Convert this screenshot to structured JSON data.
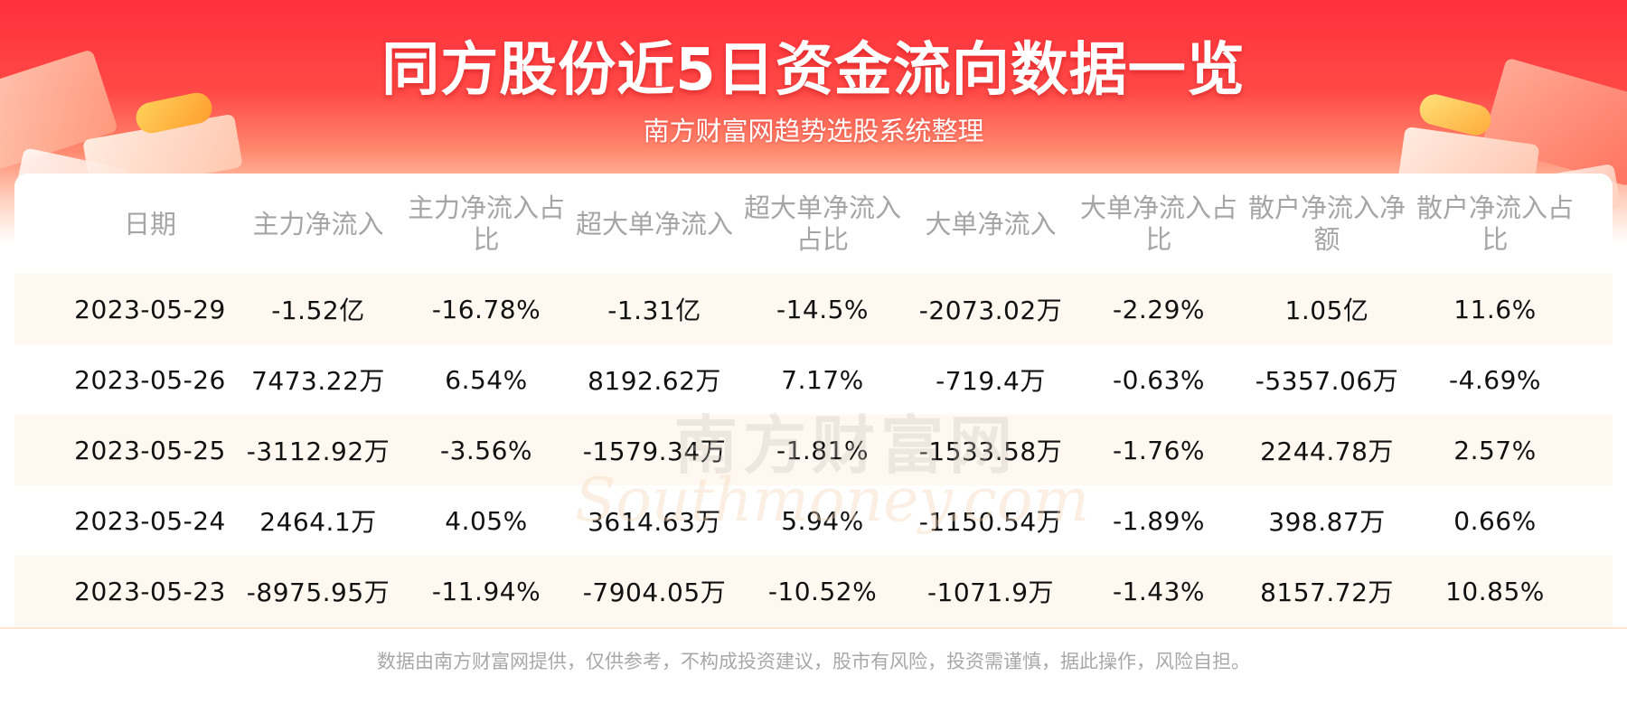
{
  "header": {
    "title": "同方股份近5日资金流向数据一览",
    "subtitle": "南方财富网趋势选股系统整理"
  },
  "watermark": {
    "cn": "南方财富网",
    "en": "Southmoney.com"
  },
  "table": {
    "columns": [
      "日期",
      "主力净流入",
      "主力净流入占比",
      "超大单净流入",
      "超大单净流入占比",
      "大单净流入",
      "大单净流入占比",
      "散户净流入净额",
      "散户净流入占比"
    ],
    "rows": [
      [
        "2023-05-29",
        "-1.52亿",
        "-16.78%",
        "-1.31亿",
        "-14.5%",
        "-2073.02万",
        "-2.29%",
        "1.05亿",
        "11.6%"
      ],
      [
        "2023-05-26",
        "7473.22万",
        "6.54%",
        "8192.62万",
        "7.17%",
        "-719.4万",
        "-0.63%",
        "-5357.06万",
        "-4.69%"
      ],
      [
        "2023-05-25",
        "-3112.92万",
        "-3.56%",
        "-1579.34万",
        "-1.81%",
        "-1533.58万",
        "-1.76%",
        "2244.78万",
        "2.57%"
      ],
      [
        "2023-05-24",
        "2464.1万",
        "4.05%",
        "3614.63万",
        "5.94%",
        "-1150.54万",
        "-1.89%",
        "398.87万",
        "0.66%"
      ],
      [
        "2023-05-23",
        "-8975.95万",
        "-11.94%",
        "-7904.05万",
        "-10.52%",
        "-1071.9万",
        "-1.43%",
        "8157.72万",
        "10.85%"
      ]
    ]
  },
  "footer": {
    "disclaimer": "数据由南方财富网提供，仅供参考，不构成投资建议，股市有风险，投资需谨慎，据此操作，风险自担。"
  },
  "colors": {
    "banner_red": "#ff2f3a",
    "row_shade": "#fff8f0",
    "header_text": "#a5a5a5",
    "body_text": "#111111"
  }
}
